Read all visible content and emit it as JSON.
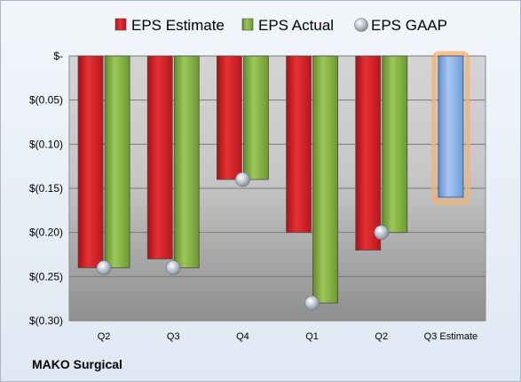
{
  "company": "MAKO Surgical",
  "colors": {
    "estimate": "#e0272a",
    "actual": "#84b43a",
    "gaap": "#b0b8c3",
    "future_estimate": "#7fa8df",
    "future_glow": "#f6b26b"
  },
  "chart_data": {
    "type": "bar",
    "categories": [
      "Q2",
      "Q3",
      "Q4",
      "Q1",
      "Q2",
      "Q3 Estimate"
    ],
    "series": [
      {
        "name": "EPS Estimate",
        "values": [
          -0.24,
          -0.23,
          -0.14,
          -0.2,
          -0.22,
          -0.16
        ]
      },
      {
        "name": "EPS Actual",
        "values": [
          -0.24,
          -0.24,
          -0.14,
          -0.28,
          -0.2,
          null
        ]
      },
      {
        "name": "EPS GAAP",
        "values": [
          -0.24,
          -0.24,
          -0.14,
          -0.28,
          -0.2,
          null
        ]
      }
    ],
    "y_ticks": [
      "$-",
      "$(0.05)",
      "$(0.10)",
      "$(0.15)",
      "$(0.20)",
      "$(0.25)",
      "$(0.30)"
    ],
    "ylim": [
      -0.3,
      0
    ],
    "grid": true,
    "legend_position": "top"
  }
}
